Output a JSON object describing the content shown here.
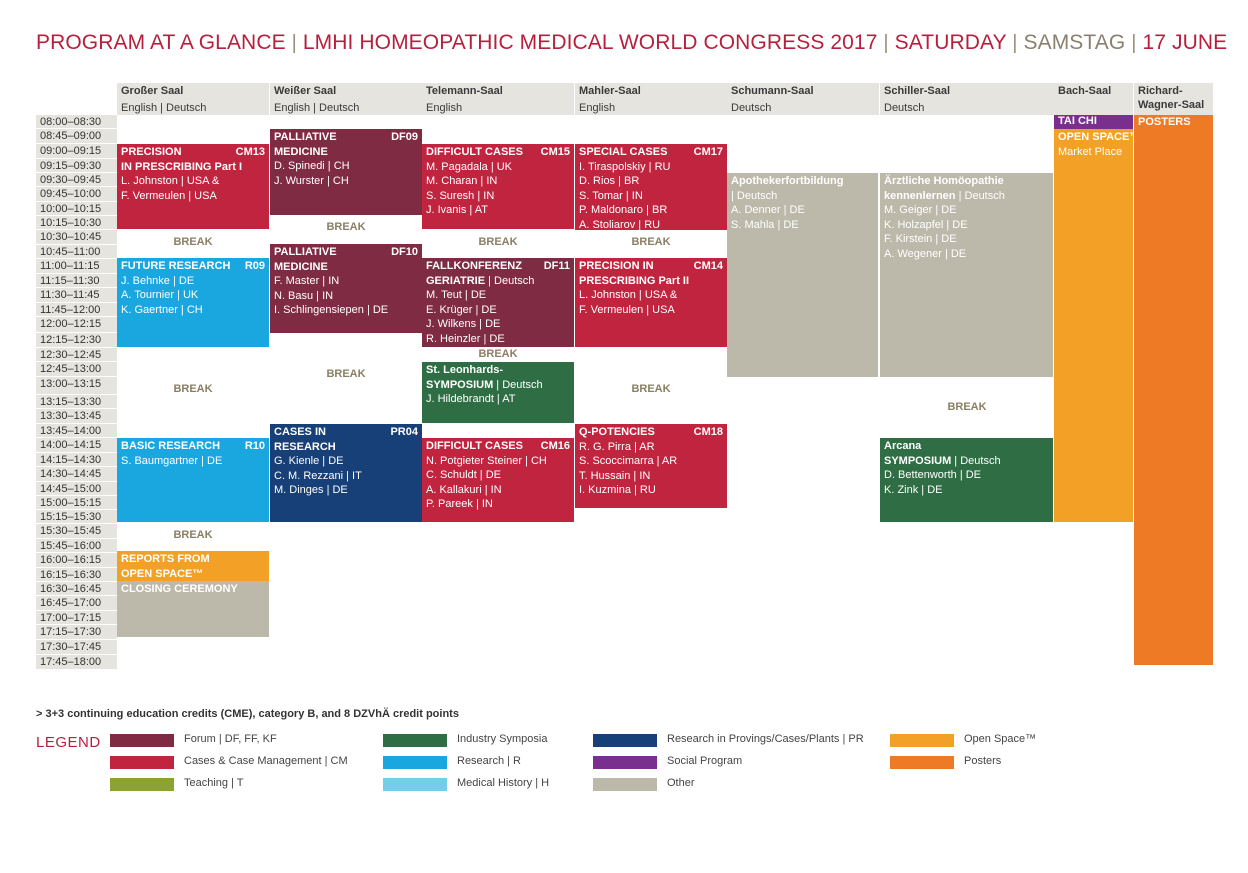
{
  "title": {
    "part1": "PROGRAM AT A GLANCE",
    "part2": "LMHI HOMEOPATHIC MEDICAL WORLD CONGRESS 2017",
    "part3": "SATURDAY",
    "part4": "SAMSTAG",
    "part5": "17 JUNE",
    "separator": "|"
  },
  "rooms": [
    {
      "name": "Großer Saal",
      "lang": "English | Deutsch"
    },
    {
      "name": "Weißer Saal",
      "lang": "English | Deutsch"
    },
    {
      "name": "Telemann-Saal",
      "lang": "English"
    },
    {
      "name": "Mahler-Saal",
      "lang": "English"
    },
    {
      "name": "Schumann-Saal",
      "lang": "Deutsch"
    },
    {
      "name": "Schiller-Saal",
      "lang": "Deutsch"
    },
    {
      "name": "Bach-Saal",
      "lang": ""
    },
    {
      "name": "Richard-Wagner-Saal",
      "lang": ""
    }
  ],
  "times": [
    "08:00–08:30",
    "08:45–09:00",
    "09:00–09:15",
    "09:15–09:30",
    "09:30–09:45",
    "09:45–10:00",
    "10:00–10:15",
    "10:15–10:30",
    "10:30–10:45",
    "10:45–11:00",
    "11:00–11:15",
    "11:15–11:30",
    "11:30–11:45",
    "11:45–12:00",
    "12:00–12:15",
    "12:15–12:30",
    "12:30–12:45",
    "12:45–13:00",
    "13:00–13:15",
    "13:15–13:30",
    "13:30–13:45",
    "13:45–14:00",
    "14:00–14:15",
    "14:15–14:30",
    "14:30–14:45",
    "14:45–15:00",
    "15:00–15:15",
    "15:15–15:30",
    "15:30–15:45",
    "15:45–16:00",
    "16:00–16:15",
    "16:15–16:30",
    "16:30–16:45",
    "16:45–17:00",
    "17:00–17:15",
    "17:15–17:30",
    "17:30–17:45",
    "17:45–18:00"
  ],
  "break_label": "BREAK",
  "events": {
    "cm13": {
      "t1": "PRECISION",
      "code": "CM13",
      "t2": "IN PRESCRIBING Part I",
      "l1": "L. Johnston | USA &",
      "l2": "F. Vermeulen | USA"
    },
    "df09": {
      "t1": "PALLIATIVE",
      "code": "DF09",
      "t2": "MEDICINE",
      "l1": "D. Spinedi | CH",
      "l2": "J. Wurster | CH"
    },
    "cm15": {
      "t1": "DIFFICULT CASES",
      "code": "CM15",
      "l1": "M. Pagadala | UK",
      "l2": "M. Charan | IN",
      "l3": "S. Suresh | IN",
      "l4": "J. Ivanis | AT"
    },
    "cm17": {
      "t1": "SPECIAL CASES",
      "code": "CM17",
      "l1": "I. Tiraspolskiy | RU",
      "l2": "D. Rios | BR",
      "l3": "S. Tomar | IN",
      "l4": "P. Maldonaro | BR",
      "l5": "A. Stoliarov | RU"
    },
    "apo": {
      "t1": "Apothekerfortbildung",
      "t2": "| Deutsch",
      "l1": "A. Denner | DE",
      "l2": "S. Mahla | DE"
    },
    "aerzt": {
      "t1": "Ärztliche Homöopathie",
      "t2": "kennenlernen",
      "t2b": " | Deutsch",
      "l1": "M. Geiger | DE",
      "l2": "K. Holzapfel | DE",
      "l3": "F. Kirstein | DE",
      "l4": "A. Wegener | DE"
    },
    "taichi": {
      "t1": "TAI CHI"
    },
    "openspace": {
      "t1": "OPEN SPACE™",
      "t2": "Market Place"
    },
    "posters": {
      "t1": "POSTERS"
    },
    "r09": {
      "t1": "FUTURE RESEARCH",
      "code": "R09",
      "l1": "J. Behnke | DE",
      "l2": "A. Tournier | UK",
      "l3": "K. Gaertner | CH"
    },
    "df10": {
      "t1": "PALLIATIVE",
      "code": "DF10",
      "t2": "MEDICINE",
      "l1": "F. Master | IN",
      "l2": "N. Basu | IN",
      "l3": "I. Schlingensiepen | DE"
    },
    "df11": {
      "t1": "FALLKONFERENZ",
      "code": "DF11",
      "t2": "GERIATRIE",
      "t2b": " | Deutsch",
      "l1": "M. Teut | DE",
      "l2": "E. Krüger | DE",
      "l3": "J. Wilkens | DE",
      "l4": "R. Heinzler | DE"
    },
    "cm14": {
      "t1": "PRECISION IN",
      "code": "CM14",
      "t2": "PRESCRIBING Part II",
      "l1": "L. Johnston | USA &",
      "l2": "F. Vermeulen | USA"
    },
    "leon": {
      "t1": "St. Leonhards-",
      "t2": "SYMPOSIUM",
      "t2b": " | Deutsch",
      "l1": "J. Hildebrandt | AT"
    },
    "pr04": {
      "t1": "CASES IN RESEARCH",
      "code": "PR04",
      "l1": "G. Kienle | DE",
      "l2": "C. M. Rezzani | IT",
      "l3": "M. Dinges | DE"
    },
    "r10": {
      "t1": "BASIC RESEARCH",
      "code": "R10",
      "l1": "S. Baumgartner | DE"
    },
    "cm16": {
      "t1": "DIFFICULT CASES",
      "code": "CM16",
      "l1": "N. Potgieter Steiner | CH",
      "l2": "C. Schuldt | DE",
      "l3": "A. Kallakuri | IN",
      "l4": "P. Pareek | IN"
    },
    "cm18": {
      "t1": "Q-POTENCIES",
      "code": "CM18",
      "l1": "R. G. Pirra | AR",
      "l2": "S. Scoccimarra | AR",
      "l3": "T. Hussain | IN",
      "l4": "I. Kuzmina | RU"
    },
    "arcana": {
      "t1": "Arcana",
      "t2": "SYMPOSIUM",
      "t2b": " | Deutsch",
      "l1": "D. Bettenworth | DE",
      "l2": "K. Zink | DE"
    },
    "reports": {
      "t1": "REPORTS FROM",
      "t2": "OPEN SPACE™"
    },
    "closing": {
      "t1": "CLOSING CEREMONY"
    }
  },
  "footnote": "> 3+3 continuing education credits (CME), category B, and 8 DZVhÄ credit points",
  "legend": {
    "title": "LEGEND",
    "items": [
      {
        "label": "Forum | DF, FF, KF",
        "color": "#7f2b44"
      },
      {
        "label": "Cases & Case Management | CM",
        "color": "#c1243f"
      },
      {
        "label": "Teaching | T",
        "color": "#8ca233"
      },
      {
        "label": "Industry Symposia",
        "color": "#2f6e44"
      },
      {
        "label": "Research | R",
        "color": "#1aa7e0"
      },
      {
        "label": "Medical History | H",
        "color": "#74cdea"
      },
      {
        "label": "Research in Provings/Cases/Plants | PR",
        "color": "#173f78"
      },
      {
        "label": "Social Program",
        "color": "#7a2e8e"
      },
      {
        "label": "Other",
        "color": "#bcb8aa"
      },
      {
        "label": "Open Space™",
        "color": "#f2a126"
      },
      {
        "label": "Posters",
        "color": "#ef7a25"
      }
    ]
  }
}
